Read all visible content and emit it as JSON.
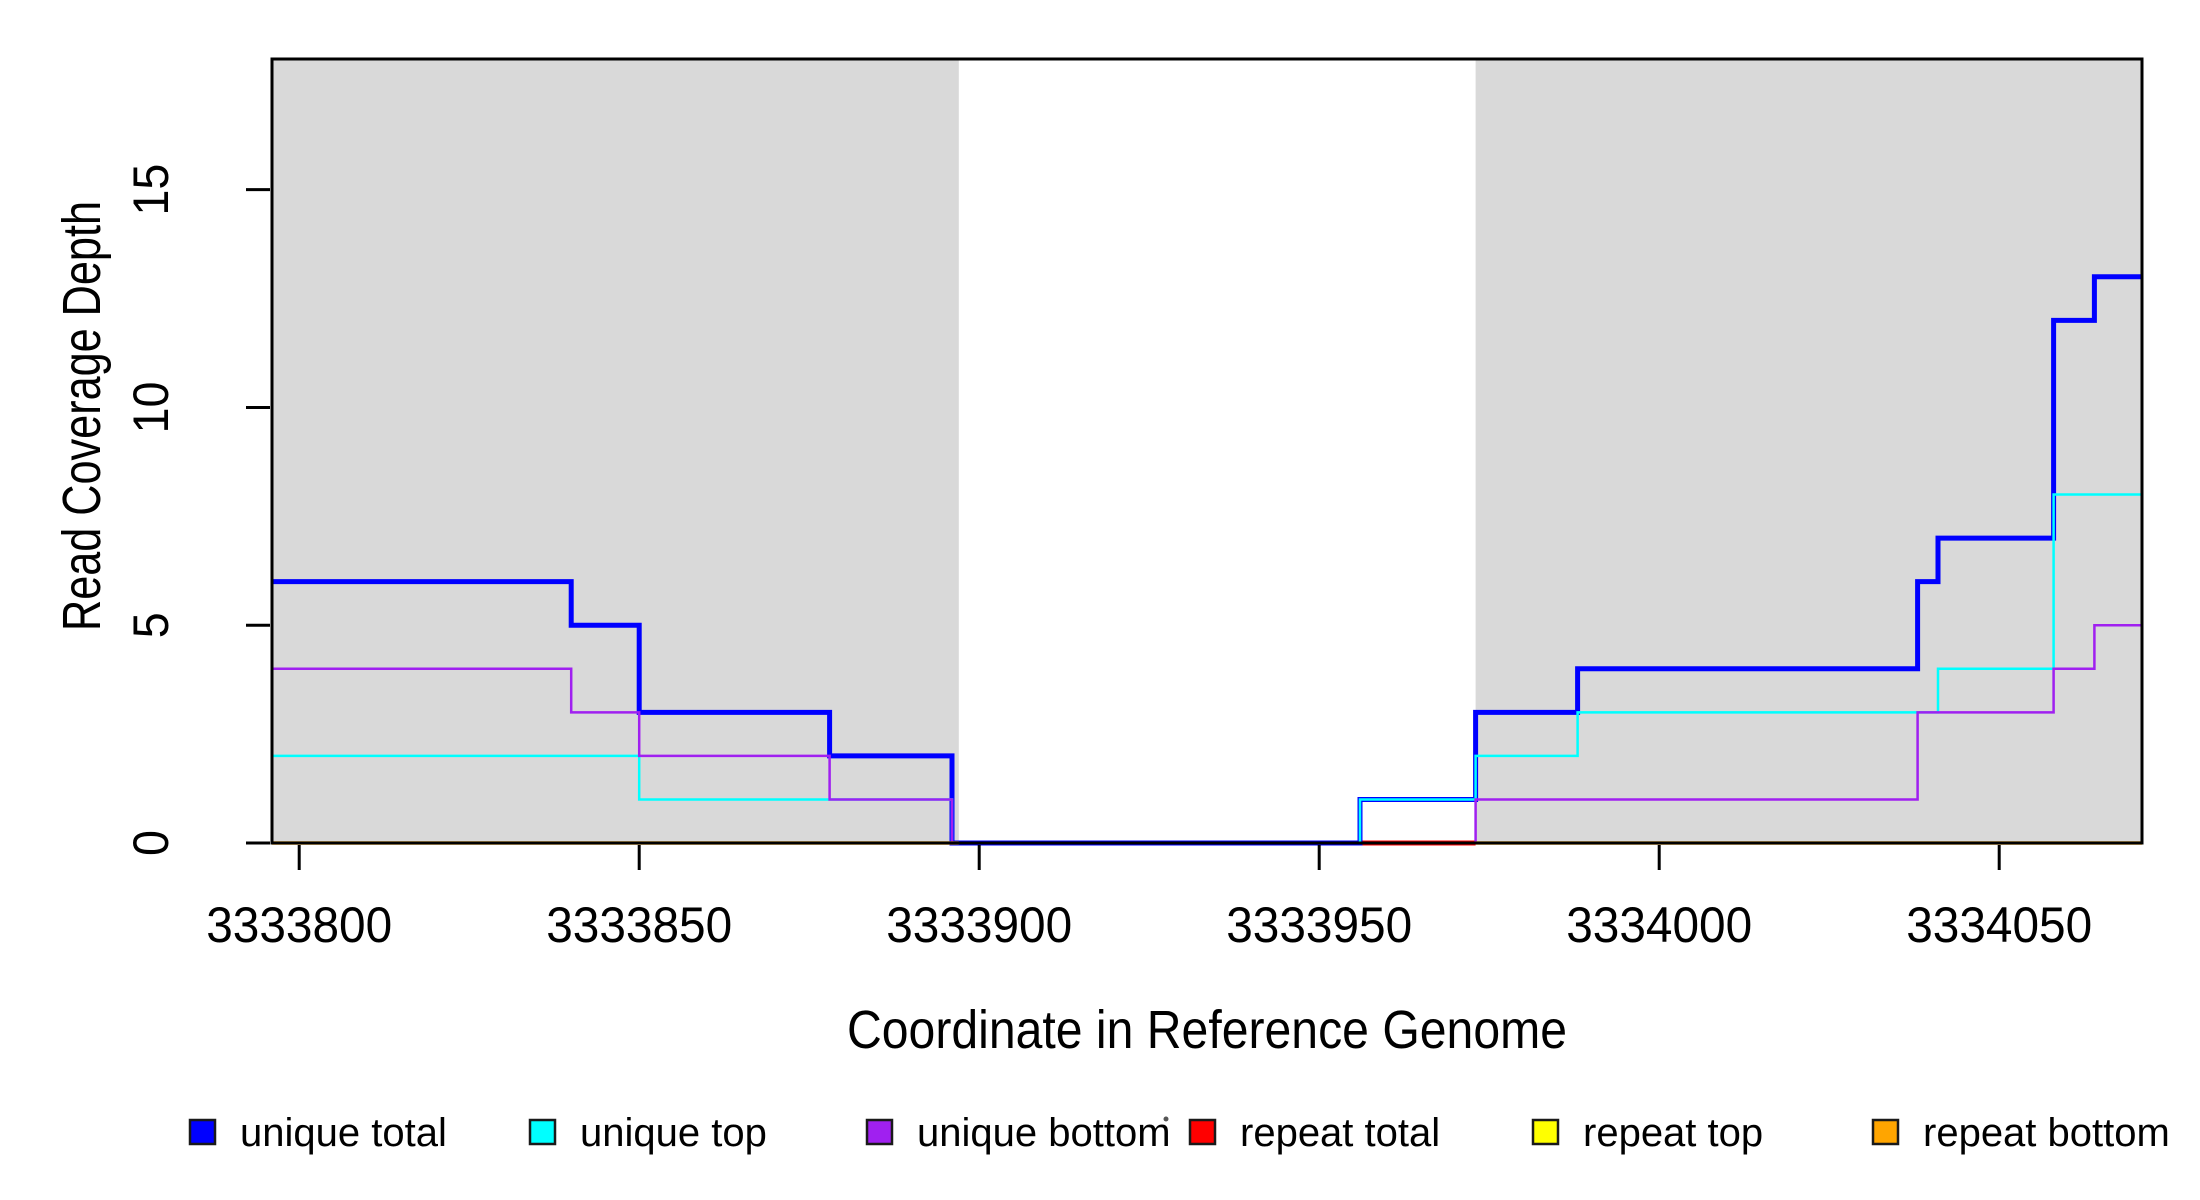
{
  "figure": {
    "background": "#ffffff",
    "box_color": "#000000"
  },
  "x_axis": {
    "label": "Coordinate in Reference Genome",
    "ticks": [
      3333800,
      3333850,
      3333900,
      3333950,
      3334000,
      3334050
    ],
    "tick_labels": [
      "3333800",
      "3333850",
      "3333900",
      "3333950",
      "3334000",
      "3334050"
    ],
    "range": [
      3333796,
      3334071
    ]
  },
  "y_axis": {
    "label": "Read Coverage Depth",
    "ticks": [
      0,
      5,
      10,
      15
    ],
    "tick_labels": [
      "0",
      "5",
      "10",
      "15"
    ],
    "range": [
      0,
      18
    ]
  },
  "shaded_regions": {
    "color": "#d9d9d9",
    "regions": [
      [
        3333796,
        3333897
      ],
      [
        3333973,
        3334071
      ]
    ]
  },
  "chart_data": {
    "type": "line",
    "step": "after",
    "title": "",
    "xlabel": "Coordinate in Reference Genome",
    "ylabel": "Read Coverage Depth",
    "xlim": [
      3333796,
      3334071
    ],
    "ylim": [
      0,
      18
    ],
    "grid": false,
    "legend_position": "bottom",
    "series": [
      {
        "name": "unique total",
        "color": "#0000ff",
        "line_width": 5,
        "draw_order": 3,
        "segments": [
          [
            [
              3333796,
              6
            ],
            [
              3333840,
              5
            ],
            [
              3333850,
              3
            ],
            [
              3333878,
              2
            ],
            [
              3333896,
              0
            ],
            [
              3333956,
              1
            ],
            [
              3333973,
              3
            ],
            [
              3333988,
              4
            ],
            [
              3334038,
              6
            ],
            [
              3334041,
              7
            ],
            [
              3334058,
              12
            ],
            [
              3334064,
              13
            ],
            [
              3334071,
              13
            ]
          ]
        ]
      },
      {
        "name": "unique top",
        "color": "#00ffff",
        "line_width": 2.5,
        "draw_order": 4,
        "segments": [
          [
            [
              3333796,
              2
            ],
            [
              3333850,
              1
            ],
            [
              3333896,
              0
            ],
            [
              3333956,
              1
            ],
            [
              3333973,
              2
            ],
            [
              3333988,
              3
            ],
            [
              3334041,
              4
            ],
            [
              3334058,
              8
            ],
            [
              3334071,
              8
            ]
          ]
        ]
      },
      {
        "name": "unique bottom",
        "color": "#a020f0",
        "line_width": 2.5,
        "draw_order": 5,
        "segments": [
          [
            [
              3333796,
              4
            ],
            [
              3333840,
              3
            ],
            [
              3333850,
              2
            ],
            [
              3333878,
              1
            ],
            [
              3333896,
              0
            ],
            [
              3333973,
              1
            ],
            [
              3334038,
              3
            ],
            [
              3334058,
              4
            ],
            [
              3334064,
              5
            ],
            [
              3334071,
              5
            ]
          ]
        ]
      },
      {
        "name": "repeat total",
        "color": "#ff0000",
        "line_width": 5,
        "draw_order": 1,
        "segments": [
          [
            [
              3333896,
              0
            ],
            [
              3333973,
              0
            ]
          ]
        ]
      },
      {
        "name": "repeat top",
        "color": "#ffff00",
        "line_width": 2.5,
        "draw_order": 2,
        "segments": [
          [
            [
              3333796,
              0
            ],
            [
              3333897,
              0
            ]
          ],
          [
            [
              3333973,
              0
            ],
            [
              3334071,
              0
            ]
          ]
        ]
      },
      {
        "name": "repeat bottom",
        "color": "#ffa500",
        "line_width": 3.5,
        "draw_order": 6,
        "segments": [
          [
            [
              3333796,
              0
            ],
            [
              3333897,
              0
            ]
          ],
          [
            [
              3333973,
              0
            ],
            [
              3334071,
              0
            ]
          ]
        ]
      }
    ]
  },
  "legend": {
    "entries": [
      {
        "label": "unique total",
        "color": "#0000ff"
      },
      {
        "label": "unique top",
        "color": "#00ffff"
      },
      {
        "label": "unique bottom",
        "color": "#a020f0"
      },
      {
        "label": "repeat total",
        "color": "#ff0000"
      },
      {
        "label": "repeat top",
        "color": "#ffff00"
      },
      {
        "label": "repeat bottom",
        "color": "#ffa500"
      }
    ]
  }
}
